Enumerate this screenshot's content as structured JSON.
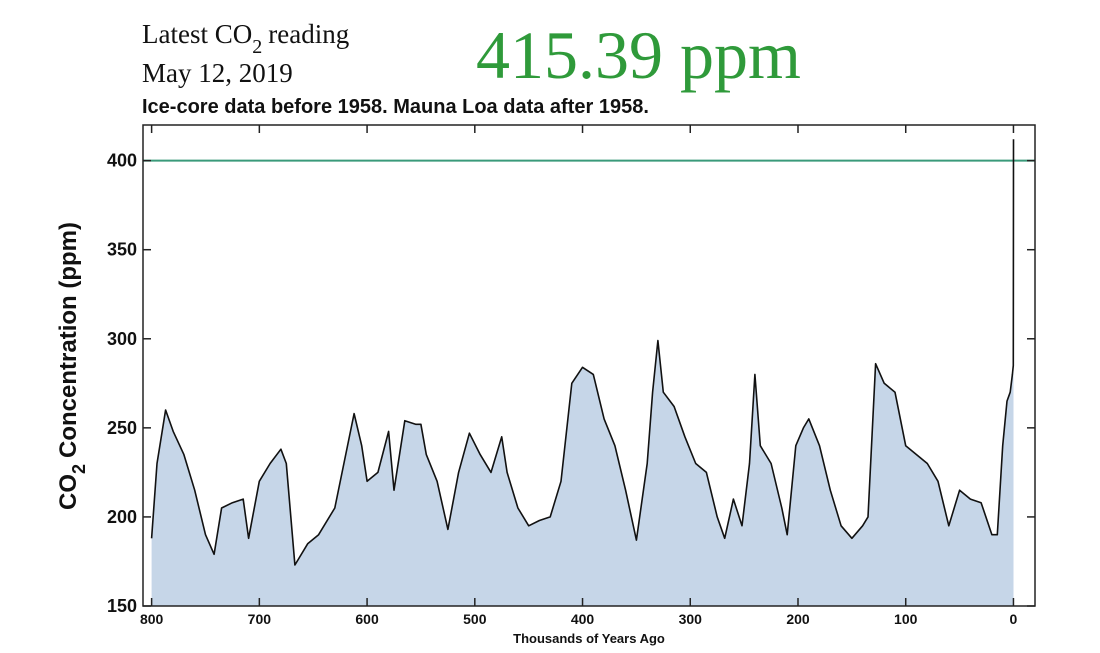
{
  "chart_data": {
    "type": "area",
    "reading_label": [
      "Latest CO",
      "2",
      "reading"
    ],
    "reading_date": "May 12, 2019",
    "reading_value": "415.39 ppm",
    "reading_color": "#2f9a3a",
    "subtitle": "Ice-core data before 1958. Mauna Loa data after 1958.",
    "ylabel": [
      "CO",
      "2",
      "Concentration (ppm)"
    ],
    "xlabel": "Thousands of Years Ago",
    "xlim": [
      808,
      -20
    ],
    "ylim": [
      150,
      420
    ],
    "xticks": [
      800,
      700,
      600,
      500,
      400,
      300,
      200,
      100,
      0
    ],
    "yticks": [
      150,
      200,
      250,
      300,
      350,
      400
    ],
    "grid": false,
    "reference_line": {
      "value": 400,
      "color": "#3a9a7a"
    },
    "x": [
      800,
      795,
      787,
      780,
      770,
      760,
      750,
      742,
      735,
      725,
      715,
      710,
      700,
      690,
      680,
      675,
      667,
      655,
      645,
      630,
      612,
      605,
      600,
      590,
      580,
      575,
      565,
      555,
      550,
      545,
      535,
      525,
      515,
      505,
      495,
      485,
      475,
      470,
      460,
      450,
      440,
      430,
      420,
      410,
      400,
      390,
      380,
      370,
      360,
      350,
      340,
      335,
      330,
      325,
      315,
      305,
      295,
      285,
      275,
      268,
      260,
      252,
      245,
      240,
      235,
      225,
      215,
      210,
      202,
      195,
      190,
      180,
      170,
      160,
      150,
      140,
      135,
      128,
      120,
      110,
      100,
      90,
      80,
      70,
      60,
      50,
      40,
      30,
      20,
      15,
      10,
      6,
      3,
      1,
      0.1,
      0
    ],
    "series": [
      {
        "name": "CO2",
        "color": "#111111",
        "fill": "#c6d6e8",
        "values": [
          188,
          230,
          260,
          248,
          235,
          215,
          190,
          179,
          205,
          208,
          210,
          188,
          220,
          230,
          238,
          230,
          173,
          185,
          190,
          205,
          258,
          240,
          220,
          225,
          248,
          215,
          254,
          252,
          252,
          235,
          220,
          193,
          225,
          247,
          235,
          225,
          245,
          225,
          205,
          195,
          198,
          200,
          220,
          275,
          284,
          280,
          255,
          240,
          215,
          187,
          230,
          270,
          299,
          270,
          262,
          245,
          230,
          225,
          200,
          188,
          210,
          195,
          230,
          280,
          240,
          230,
          205,
          190,
          240,
          250,
          255,
          240,
          215,
          195,
          188,
          195,
          200,
          286,
          275,
          270,
          240,
          235,
          230,
          220,
          195,
          215,
          210,
          208,
          190,
          190,
          240,
          265,
          270,
          280,
          285,
          412
        ]
      }
    ]
  }
}
